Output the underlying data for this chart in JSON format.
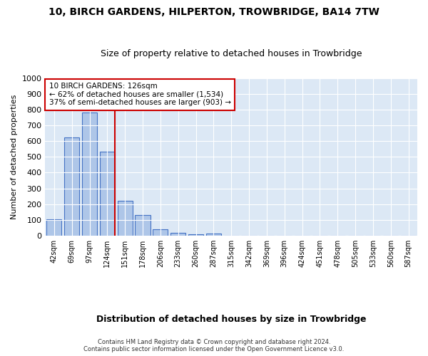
{
  "title1": "10, BIRCH GARDENS, HILPERTON, TROWBRIDGE, BA14 7TW",
  "title2": "Size of property relative to detached houses in Trowbridge",
  "xlabel": "Distribution of detached houses by size in Trowbridge",
  "ylabel": "Number of detached properties",
  "bar_labels": [
    "42sqm",
    "69sqm",
    "97sqm",
    "124sqm",
    "151sqm",
    "178sqm",
    "206sqm",
    "233sqm",
    "260sqm",
    "287sqm",
    "315sqm",
    "342sqm",
    "369sqm",
    "396sqm",
    "424sqm",
    "451sqm",
    "478sqm",
    "505sqm",
    "533sqm",
    "560sqm",
    "587sqm"
  ],
  "bar_values": [
    103,
    623,
    783,
    535,
    222,
    133,
    42,
    17,
    10,
    12,
    0,
    0,
    0,
    0,
    0,
    0,
    0,
    0,
    0,
    0,
    0
  ],
  "bar_color": "#aec6e8",
  "bar_edge_color": "#4472c4",
  "annotation_text": "10 BIRCH GARDENS: 126sqm\n← 62% of detached houses are smaller (1,534)\n37% of semi-detached houses are larger (903) →",
  "annotation_box_color": "#ffffff",
  "annotation_box_edge": "#cc0000",
  "ref_line_color": "#cc0000",
  "ylim": [
    0,
    1000
  ],
  "yticks": [
    0,
    100,
    200,
    300,
    400,
    500,
    600,
    700,
    800,
    900,
    1000
  ],
  "footer": "Contains HM Land Registry data © Crown copyright and database right 2024.\nContains public sector information licensed under the Open Government Licence v3.0.",
  "plot_bg_color": "#dce8f5",
  "title1_fontsize": 10,
  "title2_fontsize": 9,
  "xlabel_fontsize": 9,
  "ylabel_fontsize": 8
}
